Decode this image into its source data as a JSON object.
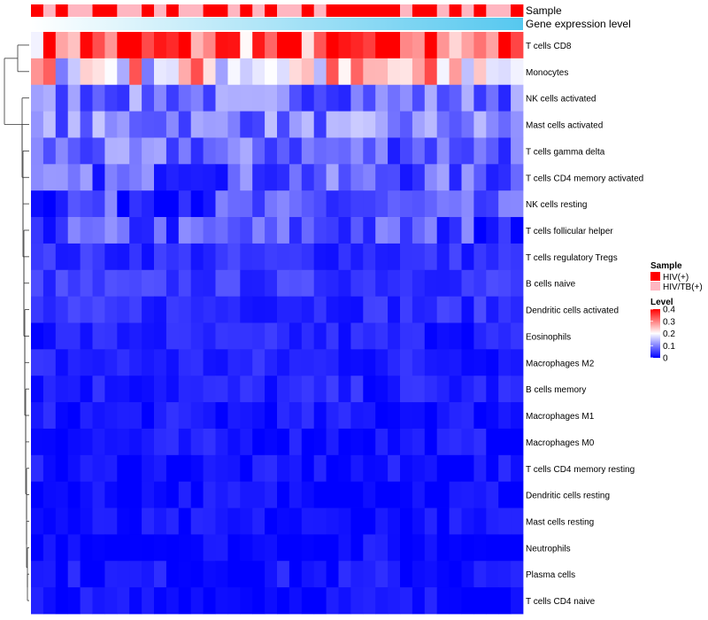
{
  "chart_data": {
    "type": "heatmap",
    "title": "",
    "annotation_rows": [
      "Sample",
      "Gene expression level"
    ],
    "rows": [
      "T cells CD8",
      "Monocytes",
      "NK cells activated",
      "Mast cells activated",
      "T cells gamma delta",
      "T cells CD4 memory activated",
      "NK cells resting",
      "T cells follicular helper",
      "T cells regulatory  Tregs",
      "B cells naive",
      "Dendritic cells activated",
      "Eosinophils",
      "Macrophages M2",
      "B cells memory",
      "Macrophages M1",
      "Macrophages M0",
      "T cells CD4 memory resting",
      "Dendritic cells resting",
      "Mast cells resting",
      "Neutrophils",
      "Plasma cells",
      "T cells CD4 naive"
    ],
    "n_columns": 40,
    "sample_groups": [
      "HIV(+)",
      "HIV/TB(+)",
      "HIV(+)",
      "HIV/TB(+)",
      "HIV/TB(+)",
      "HIV(+)",
      "HIV(+)",
      "HIV/TB(+)",
      "HIV/TB(+)",
      "HIV(+)",
      "HIV/TB(+)",
      "HIV(+)",
      "HIV/TB(+)",
      "HIV/TB(+)",
      "HIV(+)",
      "HIV(+)",
      "HIV/TB(+)",
      "HIV(+)",
      "HIV/TB(+)",
      "HIV(+)",
      "HIV/TB(+)",
      "HIV/TB(+)",
      "HIV(+)",
      "HIV/TB(+)",
      "HIV(+)",
      "HIV(+)",
      "HIV(+)",
      "HIV(+)",
      "HIV(+)",
      "HIV(+)",
      "HIV/TB(+)",
      "HIV(+)",
      "HIV(+)",
      "HIV/TB(+)",
      "HIV(+)",
      "HIV/TB(+)",
      "HIV(+)",
      "HIV/TB(+)",
      "HIV/TB(+)",
      "HIV(+)"
    ],
    "row_typical_values": {
      "T cells CD8": 0.33,
      "Monocytes": 0.22,
      "NK cells activated": 0.09,
      "Mast cells activated": 0.1,
      "T cells gamma delta": 0.08,
      "T cells CD4 memory activated": 0.07,
      "NK cells resting": 0.05,
      "T cells follicular helper": 0.06,
      "T cells regulatory  Tregs": 0.03,
      "B cells naive": 0.04,
      "Dendritic cells activated": 0.03,
      "Eosinophils": 0.02,
      "Macrophages M2": 0.02,
      "B cells memory": 0.02,
      "Macrophages M1": 0.01,
      "Macrophages M0": 0.01,
      "T cells CD4 memory resting": 0.005,
      "Dendritic cells resting": 0.005,
      "Mast cells resting": 0.003,
      "Neutrophils": 0.002,
      "Plasma cells": 0.01,
      "T cells CD4 naive": 0.005
    },
    "legend": {
      "sample_title": "Sample",
      "sample_entries": [
        {
          "label": "HIV(+)",
          "color": "#ff0000"
        },
        {
          "label": "HIV/TB(+)",
          "color": "#ffb6c1"
        }
      ],
      "level_title": "Level",
      "level_ticks": [
        "0.4",
        "0.3",
        "0.2",
        "0.1",
        "0"
      ],
      "level_range": [
        0,
        0.4
      ],
      "level_colors": [
        "#0000ff",
        "#ffffff",
        "#ff0000"
      ]
    },
    "gene_expression_gradient": [
      "#ffffff",
      "#56c8ef"
    ]
  }
}
